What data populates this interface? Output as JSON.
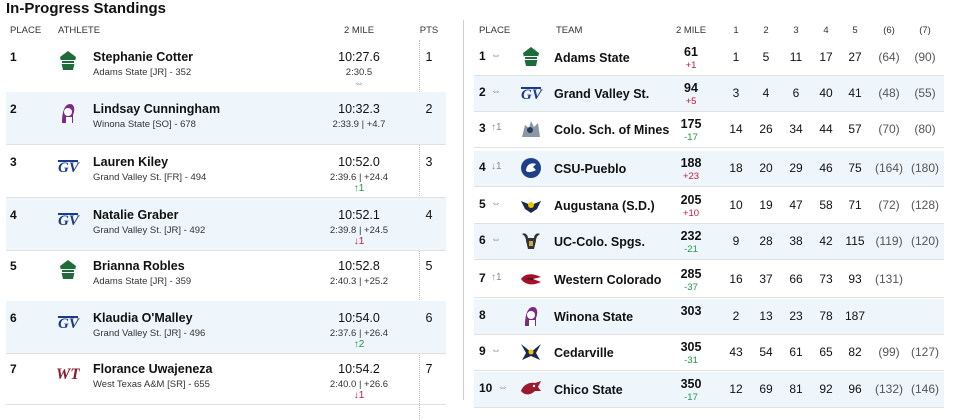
{
  "title": "In-Progress Standings",
  "athletes_table": {
    "headers": {
      "place": "PLACE",
      "athlete": "ATHLETE",
      "split": "2 MILE",
      "pts": "PTS"
    },
    "rows": [
      {
        "place": "1",
        "logo": "adams-state-logo",
        "name": "Stephanie Cotter",
        "school": "Adams State [JR] - 352",
        "time": "10:27.6",
        "split": "2:30.5",
        "move": "⇔",
        "move_type": "same",
        "pts": "1"
      },
      {
        "place": "2",
        "logo": "winona-state-logo",
        "name": "Lindsay Cunningham",
        "school": "Winona State [SO] - 678",
        "time": "10:32.3",
        "split": "2:33.9 | +4.7",
        "move": "",
        "move_type": "same",
        "pts": "2"
      },
      {
        "place": "3",
        "logo": "grand-valley-logo",
        "name": "Lauren Kiley",
        "school": "Grand Valley St. [FR] - 494",
        "time": "10:52.0",
        "split": "2:39.6 | +24.4",
        "move": "↑1",
        "move_type": "up",
        "pts": "3"
      },
      {
        "place": "4",
        "logo": "grand-valley-logo",
        "name": "Natalie Graber",
        "school": "Grand Valley St. [JR] - 492",
        "time": "10:52.1",
        "split": "2:39.8 | +24.5",
        "move": "↓1",
        "move_type": "down",
        "pts": "4"
      },
      {
        "place": "5",
        "logo": "adams-state-logo",
        "name": "Brianna Robles",
        "school": "Adams State [JR] - 359",
        "time": "10:52.8",
        "split": "2:40.3 | +25.2",
        "move": "",
        "move_type": "same",
        "pts": "5"
      },
      {
        "place": "6",
        "logo": "grand-valley-logo",
        "name": "Klaudia O'Malley",
        "school": "Grand Valley St. [JR] - 496",
        "time": "10:54.0",
        "split": "2:37.6 | +26.4",
        "move": "↑2",
        "move_type": "up",
        "pts": "6"
      },
      {
        "place": "7",
        "logo": "west-texas-logo",
        "name": "Florance Uwajeneza",
        "school": "West Texas A&M [SR] - 655",
        "time": "10:54.2",
        "split": "2:40.0 | +26.6",
        "move": "↓1",
        "move_type": "down",
        "pts": "7"
      }
    ]
  },
  "teams_table": {
    "headers": {
      "place": "PLACE",
      "team": "TEAM",
      "score": "2 MILE",
      "c1": "1",
      "c2": "2",
      "c3": "3",
      "c4": "4",
      "c5": "5",
      "c6": "(6)",
      "c7": "(7)"
    },
    "rows": [
      {
        "place": "1",
        "move": "⇔",
        "move_type": "same",
        "logo": "adams-state-logo",
        "team": "Adams State",
        "score": "61",
        "chg": "+1",
        "chg_type": "down",
        "c1": "1",
        "c2": "5",
        "c3": "11",
        "c4": "17",
        "c5": "27",
        "c6": "(64)",
        "c7": "(90)"
      },
      {
        "place": "2",
        "move": "⇔",
        "move_type": "same",
        "logo": "grand-valley-logo",
        "team": "Grand Valley St.",
        "score": "94",
        "chg": "+5",
        "chg_type": "down",
        "c1": "3",
        "c2": "4",
        "c3": "6",
        "c4": "40",
        "c5": "41",
        "c6": "(48)",
        "c7": "(55)"
      },
      {
        "place": "3",
        "move": "↑1",
        "move_type": "up",
        "logo": "mines-logo",
        "team": "Colo. Sch. of Mines",
        "score": "175",
        "chg": "-17",
        "chg_type": "up",
        "c1": "14",
        "c2": "26",
        "c3": "34",
        "c4": "44",
        "c5": "57",
        "c6": "(70)",
        "c7": "(80)"
      },
      {
        "place": "4",
        "move": "↓1",
        "move_type": "down",
        "logo": "csu-pueblo-logo",
        "team": "CSU-Pueblo",
        "score": "188",
        "chg": "+23",
        "chg_type": "down",
        "c1": "18",
        "c2": "20",
        "c3": "29",
        "c4": "46",
        "c5": "75",
        "c6": "(164)",
        "c7": "(180)"
      },
      {
        "place": "5",
        "move": "⇔",
        "move_type": "same",
        "logo": "augustana-logo",
        "team": "Augustana (S.D.)",
        "score": "205",
        "chg": "+10",
        "chg_type": "down",
        "c1": "10",
        "c2": "19",
        "c3": "47",
        "c4": "58",
        "c5": "71",
        "c6": "(72)",
        "c7": "(128)"
      },
      {
        "place": "6",
        "move": "⇔",
        "move_type": "same",
        "logo": "uccs-logo",
        "team": "UC-Colo. Spgs.",
        "score": "232",
        "chg": "-21",
        "chg_type": "up",
        "c1": "9",
        "c2": "28",
        "c3": "38",
        "c4": "42",
        "c5": "115",
        "c6": "(119)",
        "c7": "(120)"
      },
      {
        "place": "7",
        "move": "↑1",
        "move_type": "up",
        "logo": "western-colorado-logo",
        "team": "Western Colorado",
        "score": "285",
        "chg": "-37",
        "chg_type": "up",
        "c1": "16",
        "c2": "37",
        "c3": "66",
        "c4": "73",
        "c5": "93",
        "c6": "(131)",
        "c7": ""
      },
      {
        "place": "8",
        "move": "",
        "move_type": "same",
        "logo": "winona-state-logo",
        "team": "Winona State",
        "score": "303",
        "chg": "",
        "chg_type": "up",
        "c1": "2",
        "c2": "13",
        "c3": "23",
        "c4": "78",
        "c5": "187",
        "c6": "",
        "c7": ""
      },
      {
        "place": "9",
        "move": "⇔",
        "move_type": "same",
        "logo": "cedarville-logo",
        "team": "Cedarville",
        "score": "305",
        "chg": "-31",
        "chg_type": "up",
        "c1": "43",
        "c2": "54",
        "c3": "61",
        "c4": "65",
        "c5": "82",
        "c6": "(99)",
        "c7": "(127)"
      },
      {
        "place": "10",
        "move": "⇔",
        "move_type": "same",
        "logo": "chico-state-logo",
        "team": "Chico State",
        "score": "350",
        "chg": "-17",
        "chg_type": "up",
        "c1": "12",
        "c2": "69",
        "c3": "81",
        "c4": "92",
        "c5": "96",
        "c6": "(132)",
        "c7": "(146)"
      }
    ]
  }
}
